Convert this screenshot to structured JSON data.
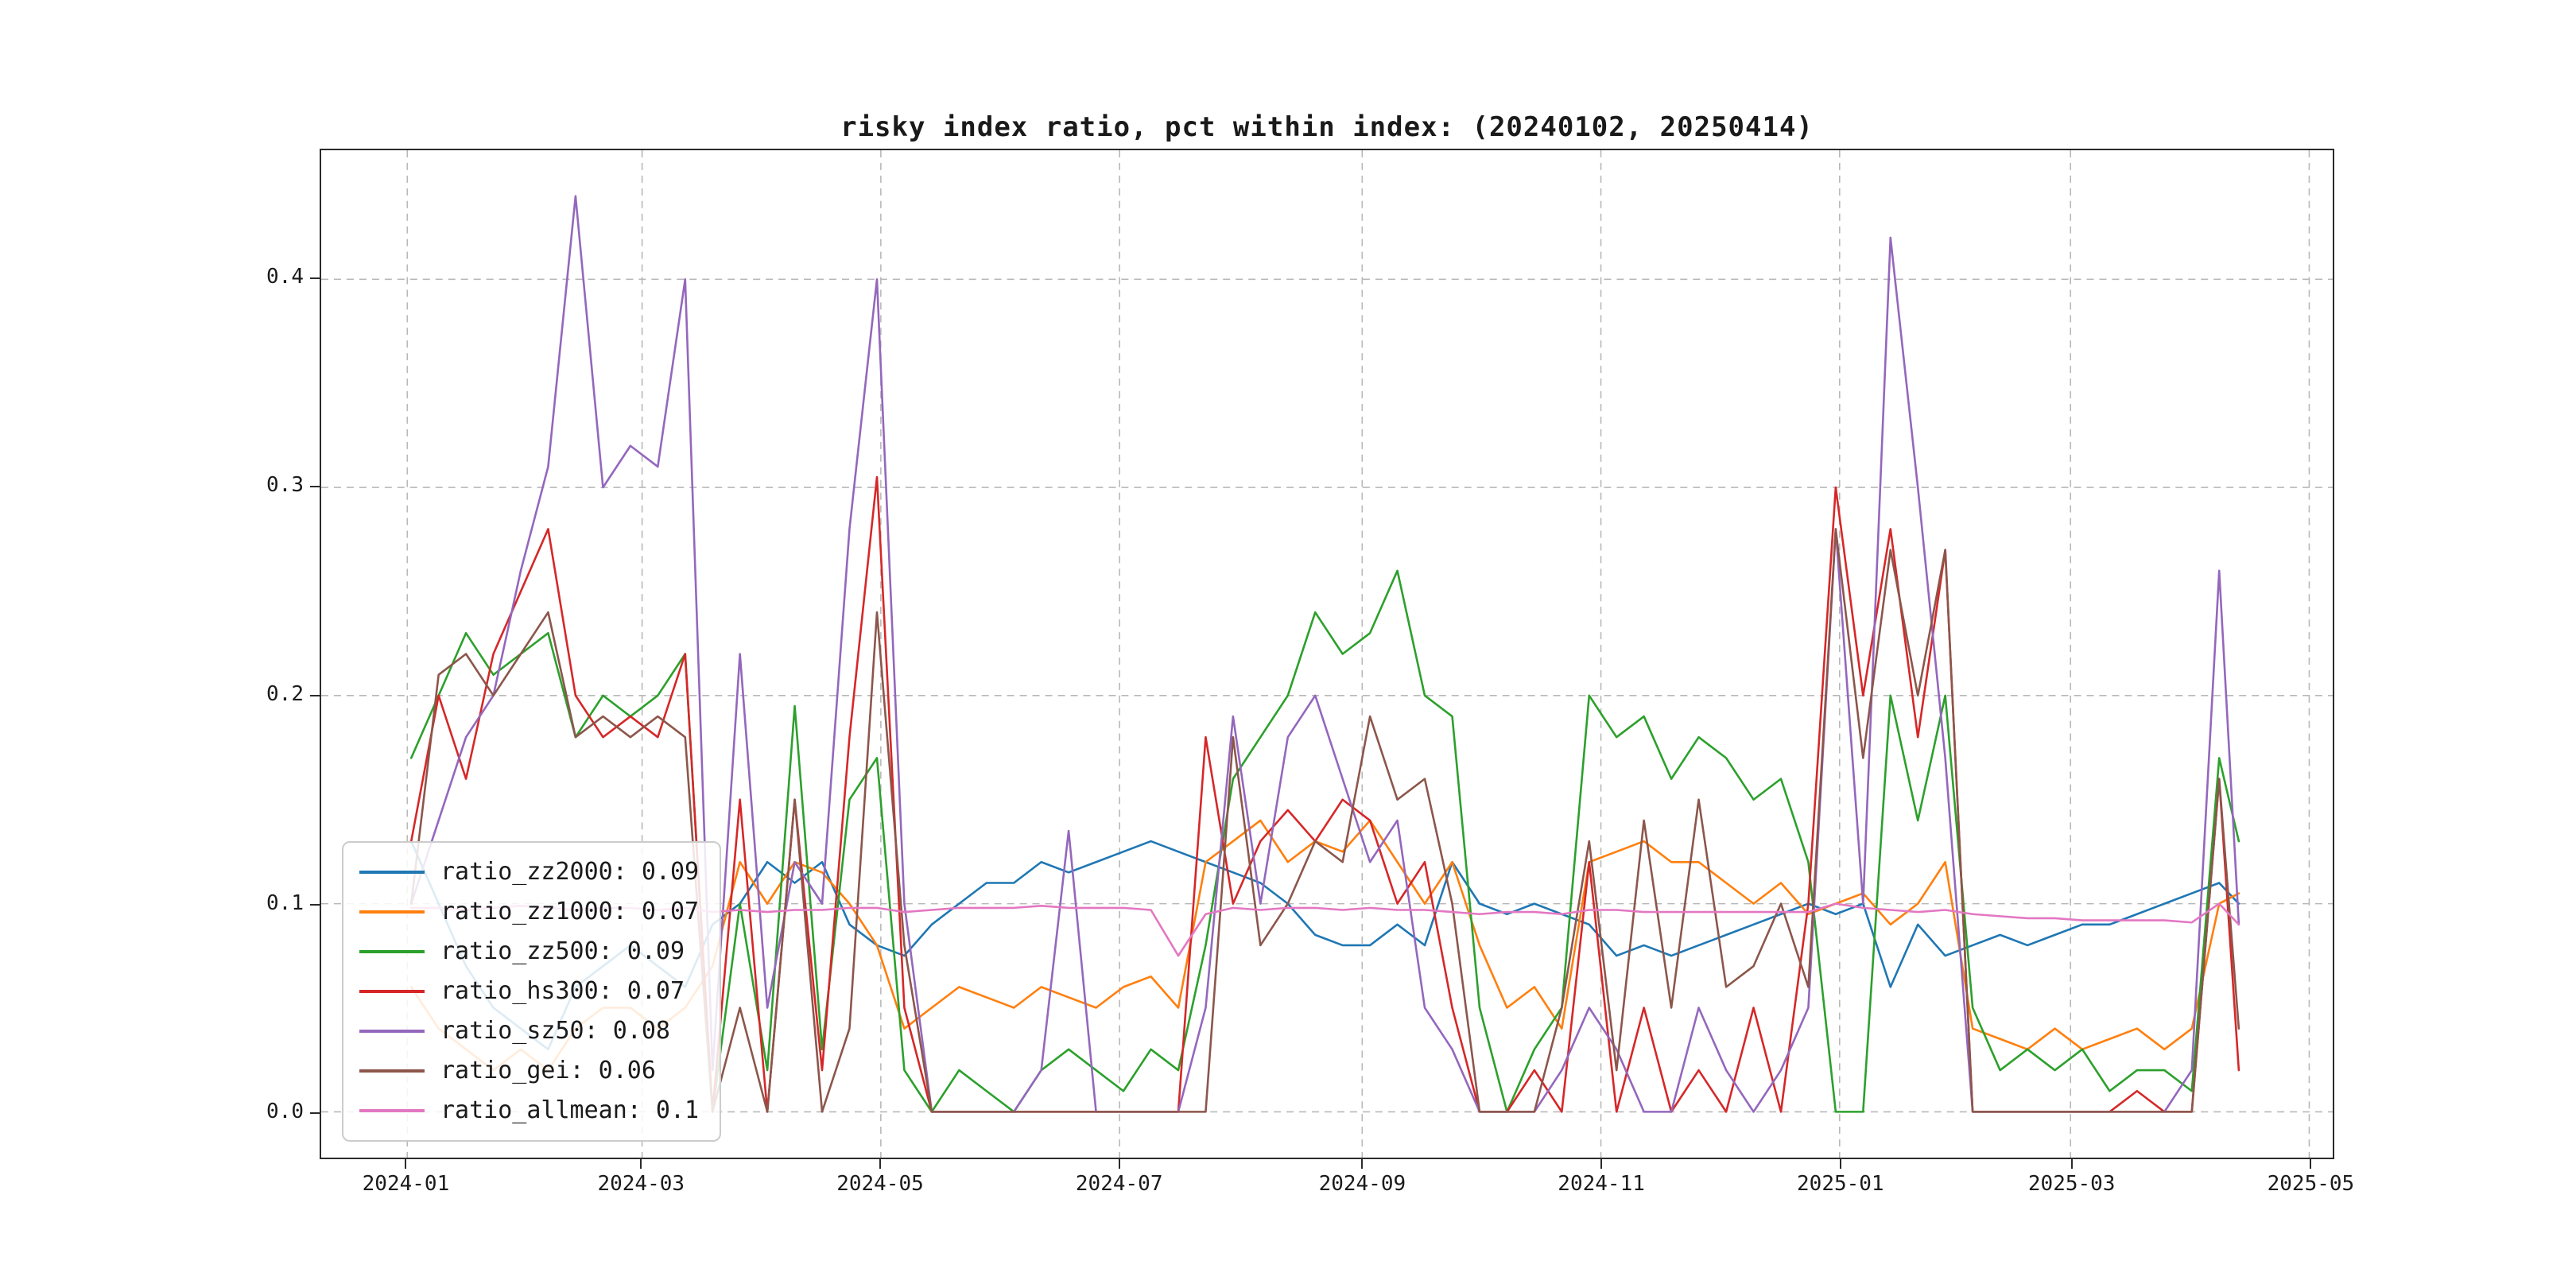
{
  "page": {
    "background": "#ffffff"
  },
  "chart_data": {
    "type": "line",
    "title": "risky index ratio, pct within index: (20240102, 20250414)",
    "xlabel": "",
    "ylabel": "",
    "grid": "dashed",
    "legend_position": "lower left",
    "x_unit": "days since 2024-01-01",
    "xlim": [
      -22,
      492
    ],
    "ylim": [
      -0.022,
      0.462
    ],
    "xticks": [
      {
        "day": 0,
        "label": "2024-01"
      },
      {
        "day": 60,
        "label": "2024-03"
      },
      {
        "day": 121,
        "label": "2024-05"
      },
      {
        "day": 182,
        "label": "2024-07"
      },
      {
        "day": 244,
        "label": "2024-09"
      },
      {
        "day": 305,
        "label": "2024-11"
      },
      {
        "day": 366,
        "label": "2025-01"
      },
      {
        "day": 425,
        "label": "2025-03"
      },
      {
        "day": 486,
        "label": "2025-05"
      }
    ],
    "yticks": [
      {
        "value": 0.0,
        "label": "0.0"
      },
      {
        "value": 0.1,
        "label": "0.1"
      },
      {
        "value": 0.2,
        "label": "0.2"
      },
      {
        "value": 0.3,
        "label": "0.3"
      },
      {
        "value": 0.4,
        "label": "0.4"
      }
    ],
    "x": [
      1,
      8,
      15,
      22,
      29,
      36,
      43,
      50,
      57,
      64,
      71,
      78,
      85,
      92,
      99,
      106,
      113,
      120,
      127,
      134,
      141,
      148,
      155,
      162,
      169,
      176,
      183,
      190,
      197,
      204,
      211,
      218,
      225,
      232,
      239,
      246,
      253,
      260,
      267,
      274,
      281,
      288,
      295,
      302,
      309,
      316,
      323,
      330,
      337,
      344,
      351,
      358,
      365,
      372,
      379,
      386,
      393,
      400,
      407,
      414,
      421,
      428,
      435,
      442,
      449,
      456,
      463,
      468
    ],
    "series": [
      {
        "name": "ratio_zz2000",
        "legend_label": "ratio_zz2000: 0.09",
        "color": "#1f77b4",
        "values": [
          0.13,
          0.1,
          0.07,
          0.05,
          0.04,
          0.03,
          0.06,
          0.07,
          0.08,
          0.07,
          0.06,
          0.09,
          0.1,
          0.12,
          0.11,
          0.12,
          0.09,
          0.08,
          0.075,
          0.09,
          0.1,
          0.11,
          0.11,
          0.12,
          0.115,
          0.12,
          0.125,
          0.13,
          0.125,
          0.12,
          0.115,
          0.11,
          0.1,
          0.085,
          0.08,
          0.08,
          0.09,
          0.08,
          0.12,
          0.1,
          0.095,
          0.1,
          0.095,
          0.09,
          0.075,
          0.08,
          0.075,
          0.08,
          0.085,
          0.09,
          0.095,
          0.1,
          0.095,
          0.1,
          0.06,
          0.09,
          0.075,
          0.08,
          0.085,
          0.08,
          0.085,
          0.09,
          0.09,
          0.095,
          0.1,
          0.105,
          0.11,
          0.1
        ]
      },
      {
        "name": "ratio_zz1000",
        "legend_label": "ratio_zz1000: 0.07",
        "color": "#ff7f0e",
        "values": [
          0.06,
          0.04,
          0.03,
          0.02,
          0.03,
          0.02,
          0.04,
          0.05,
          0.05,
          0.04,
          0.05,
          0.07,
          0.12,
          0.1,
          0.12,
          0.115,
          0.1,
          0.08,
          0.04,
          0.05,
          0.06,
          0.055,
          0.05,
          0.06,
          0.055,
          0.05,
          0.06,
          0.065,
          0.05,
          0.12,
          0.13,
          0.14,
          0.12,
          0.13,
          0.125,
          0.14,
          0.12,
          0.1,
          0.12,
          0.08,
          0.05,
          0.06,
          0.04,
          0.12,
          0.125,
          0.13,
          0.12,
          0.12,
          0.11,
          0.1,
          0.11,
          0.095,
          0.1,
          0.105,
          0.09,
          0.1,
          0.12,
          0.04,
          0.035,
          0.03,
          0.04,
          0.03,
          0.035,
          0.04,
          0.03,
          0.04,
          0.1,
          0.105
        ]
      },
      {
        "name": "ratio_zz500",
        "legend_label": "ratio_zz500: 0.09",
        "color": "#2ca02c",
        "values": [
          0.17,
          0.2,
          0.23,
          0.21,
          0.22,
          0.23,
          0.18,
          0.2,
          0.19,
          0.2,
          0.22,
          0.0,
          0.1,
          0.02,
          0.195,
          0.03,
          0.15,
          0.17,
          0.02,
          0.0,
          0.02,
          0.01,
          0.0,
          0.02,
          0.03,
          0.02,
          0.01,
          0.03,
          0.02,
          0.08,
          0.16,
          0.18,
          0.2,
          0.24,
          0.22,
          0.23,
          0.26,
          0.2,
          0.19,
          0.05,
          0.0,
          0.03,
          0.05,
          0.2,
          0.18,
          0.19,
          0.16,
          0.18,
          0.17,
          0.15,
          0.16,
          0.12,
          0.0,
          0.0,
          0.2,
          0.14,
          0.2,
          0.05,
          0.02,
          0.03,
          0.02,
          0.03,
          0.01,
          0.02,
          0.02,
          0.01,
          0.17,
          0.13
        ]
      },
      {
        "name": "ratio_hs300",
        "legend_label": "ratio_hs300: 0.07",
        "color": "#d62728",
        "values": [
          0.13,
          0.2,
          0.16,
          0.22,
          0.25,
          0.28,
          0.2,
          0.18,
          0.19,
          0.18,
          0.22,
          0.0,
          0.15,
          0.0,
          0.15,
          0.02,
          0.18,
          0.305,
          0.05,
          0.0,
          0.0,
          0.0,
          0.0,
          0.0,
          0.0,
          0.0,
          0.0,
          0.0,
          0.0,
          0.18,
          0.1,
          0.13,
          0.145,
          0.13,
          0.15,
          0.14,
          0.1,
          0.12,
          0.05,
          0.0,
          0.0,
          0.02,
          0.0,
          0.12,
          0.0,
          0.05,
          0.0,
          0.02,
          0.0,
          0.05,
          0.0,
          0.1,
          0.3,
          0.2,
          0.28,
          0.18,
          0.27,
          0.0,
          0.0,
          0.0,
          0.0,
          0.0,
          0.0,
          0.01,
          0.0,
          0.0,
          0.16,
          0.02
        ]
      },
      {
        "name": "ratio_sz50",
        "legend_label": "ratio_sz50: 0.08",
        "color": "#9467bd",
        "values": [
          0.1,
          0.14,
          0.18,
          0.2,
          0.26,
          0.31,
          0.44,
          0.3,
          0.32,
          0.31,
          0.4,
          0.02,
          0.22,
          0.05,
          0.12,
          0.1,
          0.28,
          0.4,
          0.1,
          0.0,
          0.0,
          0.0,
          0.0,
          0.02,
          0.135,
          0.0,
          0.0,
          0.0,
          0.0,
          0.05,
          0.19,
          0.1,
          0.18,
          0.2,
          0.16,
          0.12,
          0.14,
          0.05,
          0.03,
          0.0,
          0.0,
          0.0,
          0.02,
          0.05,
          0.03,
          0.0,
          0.0,
          0.05,
          0.02,
          0.0,
          0.02,
          0.05,
          0.28,
          0.1,
          0.42,
          0.3,
          0.17,
          0.0,
          0.0,
          0.0,
          0.0,
          0.0,
          0.0,
          0.0,
          0.0,
          0.02,
          0.26,
          0.09
        ]
      },
      {
        "name": "ratio_gei",
        "legend_label": "ratio_gei: 0.06",
        "color": "#8c564b",
        "values": [
          0.1,
          0.21,
          0.22,
          0.2,
          0.22,
          0.24,
          0.18,
          0.19,
          0.18,
          0.19,
          0.18,
          0.0,
          0.05,
          0.0,
          0.15,
          0.0,
          0.04,
          0.24,
          0.08,
          0.0,
          0.0,
          0.0,
          0.0,
          0.0,
          0.0,
          0.0,
          0.0,
          0.0,
          0.0,
          0.0,
          0.18,
          0.08,
          0.1,
          0.13,
          0.12,
          0.19,
          0.15,
          0.16,
          0.1,
          0.0,
          0.0,
          0.0,
          0.05,
          0.13,
          0.02,
          0.14,
          0.05,
          0.15,
          0.06,
          0.07,
          0.1,
          0.06,
          0.28,
          0.17,
          0.27,
          0.2,
          0.27,
          0.0,
          0.0,
          0.0,
          0.0,
          0.0,
          0.0,
          0.0,
          0.0,
          0.0,
          0.16,
          0.04
        ]
      },
      {
        "name": "ratio_allmean",
        "legend_label": "ratio_allmean: 0.1",
        "color": "#e377c2",
        "values": [
          0.098,
          0.098,
          0.097,
          0.098,
          0.099,
          0.098,
          0.097,
          0.098,
          0.098,
          0.097,
          0.098,
          0.096,
          0.097,
          0.096,
          0.097,
          0.097,
          0.098,
          0.098,
          0.096,
          0.097,
          0.098,
          0.098,
          0.098,
          0.099,
          0.098,
          0.098,
          0.098,
          0.097,
          0.075,
          0.095,
          0.098,
          0.097,
          0.098,
          0.098,
          0.097,
          0.098,
          0.097,
          0.097,
          0.096,
          0.095,
          0.096,
          0.096,
          0.095,
          0.097,
          0.097,
          0.096,
          0.096,
          0.096,
          0.096,
          0.096,
          0.096,
          0.096,
          0.1,
          0.098,
          0.097,
          0.096,
          0.097,
          0.095,
          0.094,
          0.093,
          0.093,
          0.092,
          0.092,
          0.092,
          0.092,
          0.091,
          0.1,
          0.09
        ]
      }
    ]
  }
}
